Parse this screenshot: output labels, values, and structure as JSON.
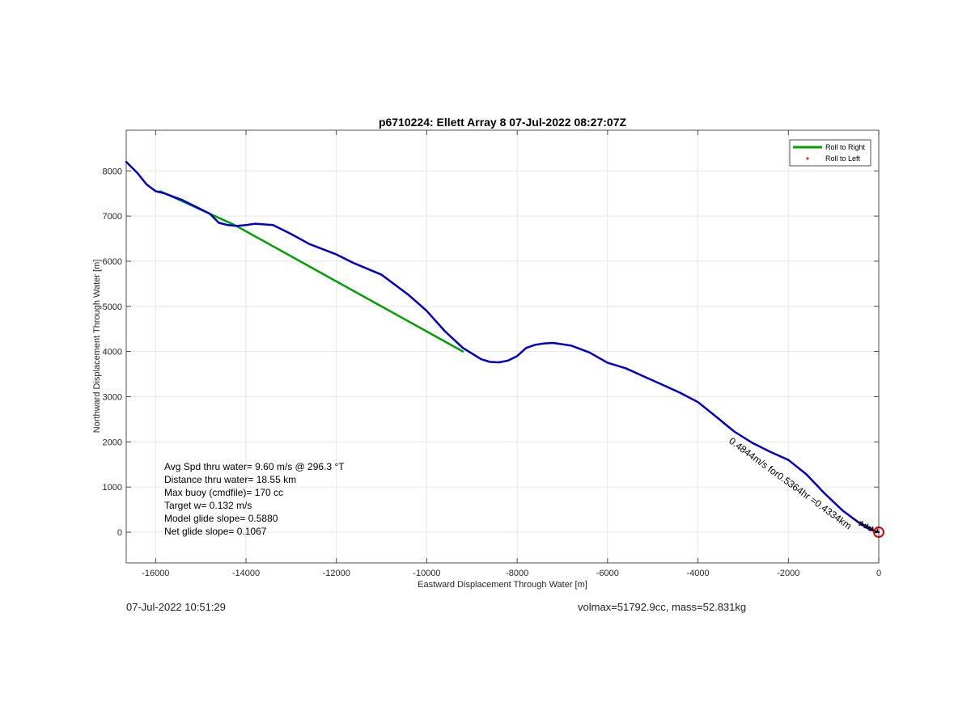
{
  "footer": {
    "timestamp": "07-Jul-2022 10:51:29",
    "volmax_mass": "volmax=51792.9cc, mass=52.831kg"
  },
  "chart_data": {
    "type": "line",
    "title": "p6710224: Ellett Array 8 07-Jul-2022 08:27:07Z",
    "xlabel": "Eastward Displacement Through Water [m]",
    "ylabel": "Northward Displacement Through Water [m]",
    "xlim": [
      -16650,
      0
    ],
    "ylim": [
      -680,
      8900
    ],
    "xticks": [
      -16000,
      -14000,
      -12000,
      -10000,
      -8000,
      -6000,
      -4000,
      -2000,
      0
    ],
    "yticks": [
      0,
      1000,
      2000,
      3000,
      4000,
      5000,
      6000,
      7000,
      8000
    ],
    "grid": true,
    "legend": {
      "position": "top-right",
      "entries": [
        {
          "label": "Roll to Right",
          "color": "#00a000",
          "marker": "line"
        },
        {
          "label": "Roll to Left",
          "color": "#ff0000",
          "marker": "dot"
        }
      ]
    },
    "series": [
      {
        "color": "#0000c8",
        "x": [
          -16650,
          -16400,
          -16200,
          -16000,
          -15800,
          -15400,
          -15000,
          -14800,
          -14600,
          -14400,
          -14200,
          -14000,
          -13800,
          -13400,
          -13000,
          -12600,
          -12000,
          -11600,
          -11000,
          -10400,
          -10000,
          -9600,
          -9200,
          -8800,
          -8600,
          -8400,
          -8200,
          -8000,
          -7800,
          -7600,
          -7400,
          -7200,
          -6800,
          -6400,
          -6000,
          -5600,
          -5200,
          -4800,
          -4400,
          -4000,
          -3600,
          -3200,
          -2800,
          -2400,
          -2000,
          -1600,
          -1200,
          -800,
          -400,
          -200,
          0
        ],
        "y": [
          8200,
          7950,
          7700,
          7550,
          7500,
          7350,
          7150,
          7050,
          6850,
          6800,
          6780,
          6800,
          6830,
          6800,
          6600,
          6380,
          6150,
          5950,
          5700,
          5250,
          4900,
          4450,
          4080,
          3830,
          3770,
          3760,
          3800,
          3900,
          4080,
          4150,
          4180,
          4190,
          4130,
          3980,
          3750,
          3630,
          3450,
          3270,
          3090,
          2880,
          2560,
          2230,
          1980,
          1780,
          1600,
          1280,
          860,
          480,
          180,
          60,
          0
        ]
      },
      {
        "color": "#00a000",
        "x": [
          -15900,
          -14250,
          -9200
        ],
        "y": [
          7550,
          6800,
          4000
        ]
      }
    ],
    "end_marker": {
      "x": 0,
      "y": 0,
      "color": "#e00000"
    },
    "annotations": [
      {
        "text": "Avg Spd thru water=  9.60 m/s @ 296.3 °T"
      },
      {
        "text": "Distance thru water= 18.55 km"
      },
      {
        "text": "Max buoy (cmdfile)= 170 cc"
      },
      {
        "text": "Target w= 0.132 m/s"
      },
      {
        "text": "Model glide slope= 0.5880"
      },
      {
        "text": "Net glide slope= 0.1067"
      }
    ],
    "rotated_label": "0.4844m/s for0.5364hr =0.4334km"
  }
}
